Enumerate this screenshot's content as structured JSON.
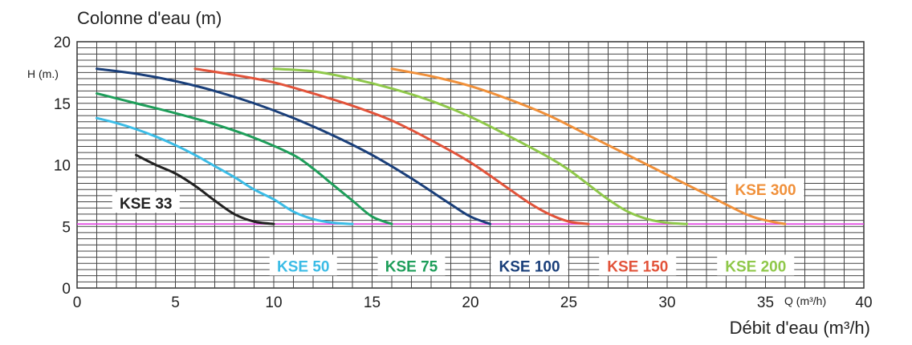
{
  "chart_data": {
    "type": "line",
    "title": "Colonne d'eau (m)",
    "ylabel": "H (m.)",
    "xlabel": "Débit d'eau (m³/h)",
    "xunit": "Q (m³/h)",
    "xlim": [
      0,
      40
    ],
    "ylim": [
      0,
      20
    ],
    "xticks": [
      "0",
      "5",
      "10",
      "15",
      "20",
      "25",
      "30",
      "35",
      "40"
    ],
    "yticks": [
      "0",
      "5",
      "10",
      "15",
      "20"
    ],
    "grid": true,
    "reference_line": {
      "y": 5.2,
      "color": "#e040e0"
    },
    "series": [
      {
        "name": "KSE 33",
        "color": "#222222",
        "x": [
          3,
          4,
          5,
          6,
          7,
          8,
          9,
          10
        ],
        "y": [
          10.8,
          10.0,
          9.3,
          8.3,
          7.1,
          6.0,
          5.4,
          5.2
        ]
      },
      {
        "name": "KSE 50",
        "color": "#3bbce6",
        "x": [
          1,
          2,
          3,
          4,
          5,
          6,
          7,
          8,
          9,
          10,
          11,
          12,
          13,
          14
        ],
        "y": [
          13.8,
          13.4,
          12.9,
          12.3,
          11.6,
          10.8,
          9.9,
          9.0,
          8.0,
          7.2,
          6.2,
          5.6,
          5.3,
          5.2
        ]
      },
      {
        "name": "KSE 75",
        "color": "#1e9e5a",
        "x": [
          1,
          3,
          5,
          7,
          9,
          11,
          12,
          13,
          14,
          15,
          16
        ],
        "y": [
          15.8,
          15.0,
          14.2,
          13.3,
          12.2,
          10.8,
          9.7,
          8.4,
          7.1,
          5.8,
          5.2
        ]
      },
      {
        "name": "KSE 100",
        "color": "#1a3f7a",
        "x": [
          1,
          3,
          5,
          7,
          9,
          11,
          13,
          15,
          17,
          19,
          20,
          21
        ],
        "y": [
          17.8,
          17.4,
          16.8,
          16.0,
          15.0,
          13.8,
          12.4,
          10.8,
          8.9,
          6.8,
          5.8,
          5.2
        ]
      },
      {
        "name": "KSE 150",
        "color": "#e2533a",
        "x": [
          6,
          8,
          10,
          12,
          14,
          16,
          18,
          20,
          22,
          23,
          24,
          25,
          26
        ],
        "y": [
          17.8,
          17.3,
          16.7,
          15.8,
          14.8,
          13.6,
          12.0,
          10.2,
          8.0,
          6.9,
          6.0,
          5.4,
          5.2
        ]
      },
      {
        "name": "KSE 200",
        "color": "#8fc84a",
        "x": [
          10,
          12,
          14,
          16,
          18,
          20,
          22,
          24,
          25,
          26,
          27,
          28,
          29,
          30,
          31
        ],
        "y": [
          17.8,
          17.6,
          17.0,
          16.2,
          15.2,
          13.9,
          12.3,
          10.6,
          9.6,
          8.4,
          7.2,
          6.2,
          5.6,
          5.3,
          5.2
        ]
      },
      {
        "name": "KSE 300",
        "color": "#f0903a",
        "x": [
          16,
          18,
          20,
          22,
          24,
          26,
          28,
          30,
          32,
          34,
          35,
          36
        ],
        "y": [
          17.8,
          17.2,
          16.4,
          15.3,
          14.0,
          12.4,
          10.8,
          9.2,
          7.6,
          6.0,
          5.5,
          5.2
        ]
      }
    ],
    "labels": [
      {
        "text": "KSE 33",
        "color": "#222222",
        "x": 3.5,
        "y": 6.9
      },
      {
        "text": "KSE 50",
        "color": "#3bbce6",
        "x": 11.5,
        "y": 1.8
      },
      {
        "text": "KSE 75",
        "color": "#1e9e5a",
        "x": 17.0,
        "y": 1.8
      },
      {
        "text": "KSE 100",
        "color": "#1a3f7a",
        "x": 23.0,
        "y": 1.8
      },
      {
        "text": "KSE 150",
        "color": "#e2533a",
        "x": 28.5,
        "y": 1.8
      },
      {
        "text": "KSE 200",
        "color": "#8fc84a",
        "x": 34.5,
        "y": 1.8
      },
      {
        "text": "KSE 300",
        "color": "#f0903a",
        "x": 35.0,
        "y": 8.0
      }
    ]
  }
}
